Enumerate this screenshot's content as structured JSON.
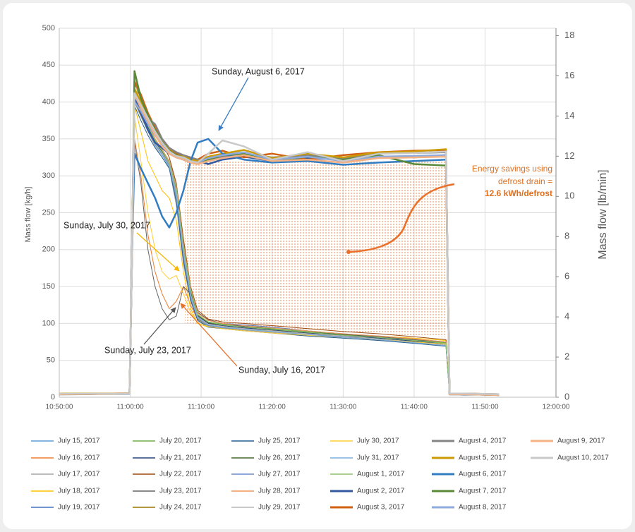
{
  "chart_data": {
    "type": "line",
    "y_label": "Mass flow [kg/h]",
    "y2_label": "Mass flow [lb/min]",
    "annotations": [
      "Sunday, August 6, 2017",
      "Sunday, July 30, 2017",
      "Sunday, July 23, 2017",
      "Sunday, July 16, 2017",
      "Energy savings using",
      "defrost drain =",
      "12.6 kWh/defrost"
    ],
    "xlim": [
      650,
      720
    ],
    "xticks": [
      {
        "value": 650,
        "label": "10:50:00"
      },
      {
        "value": 660,
        "label": "11:00:00"
      },
      {
        "value": 670,
        "label": "11:10:00"
      },
      {
        "value": 680,
        "label": "11:20:00"
      },
      {
        "value": 690,
        "label": "11:30:00"
      },
      {
        "value": 700,
        "label": "11:40:00"
      },
      {
        "value": 710,
        "label": "11:50:00"
      },
      {
        "value": 720,
        "label": "12:00:00"
      }
    ],
    "ylim": [
      0,
      500
    ],
    "yticks": [
      0,
      50,
      100,
      150,
      200,
      250,
      300,
      350,
      400,
      450,
      500
    ],
    "y2lim": [
      0,
      18.37
    ],
    "y2ticks": [
      0,
      2,
      4,
      6,
      8,
      10,
      12,
      14,
      16,
      18
    ],
    "grid": true,
    "x": [
      650,
      659.9,
      660.2,
      660.6,
      661.5,
      662.5,
      663.5,
      664.5,
      665.5,
      666.5,
      667.5,
      668.5,
      669.5,
      671,
      673,
      676,
      680,
      685,
      690,
      695,
      700,
      704.5,
      705,
      707,
      712
    ],
    "series": [
      {
        "name": "July 15, 2017",
        "color": "#5b9bd5",
        "width": 1,
        "values": [
          4,
          5,
          180,
          405,
          385,
          362,
          342,
          328,
          312,
          270,
          190,
          135,
          108,
          98,
          95,
          93,
          90,
          86,
          83,
          80,
          76,
          72,
          4,
          4,
          3
        ]
      },
      {
        "name": "July 16, 2017",
        "color": "#ed7d31",
        "width": 1,
        "values": [
          5,
          6,
          200,
          350,
          300,
          220,
          170,
          140,
          120,
          130,
          150,
          125,
          105,
          100,
          97,
          94,
          91,
          87,
          84,
          81,
          78,
          74,
          5,
          4,
          4
        ]
      },
      {
        "name": "July 17, 2017",
        "color": "#a5a5a5",
        "width": 1,
        "values": [
          3,
          4,
          150,
          400,
          380,
          360,
          340,
          325,
          310,
          260,
          180,
          130,
          105,
          96,
          94,
          91,
          88,
          84,
          80,
          77,
          74,
          70,
          3,
          3,
          3
        ]
      },
      {
        "name": "July 18, 2017",
        "color": "#ffc000",
        "width": 1,
        "values": [
          6,
          6,
          190,
          395,
          360,
          320,
          300,
          280,
          270,
          240,
          170,
          120,
          100,
          95,
          93,
          92,
          90,
          87,
          85,
          83,
          80,
          77,
          5,
          5,
          4
        ]
      },
      {
        "name": "July 19, 2017",
        "color": "#4472c4",
        "width": 1,
        "values": [
          4,
          5,
          160,
          415,
          395,
          370,
          350,
          335,
          320,
          290,
          210,
          150,
          115,
          104,
          100,
          98,
          95,
          90,
          86,
          83,
          79,
          75,
          4,
          4,
          3
        ]
      },
      {
        "name": "July 20, 2017",
        "color": "#70ad47",
        "width": 1,
        "values": [
          5,
          5,
          170,
          440,
          400,
          370,
          350,
          335,
          318,
          285,
          205,
          145,
          112,
          102,
          99,
          96,
          93,
          89,
          85,
          82,
          78,
          74,
          5,
          4,
          4
        ]
      },
      {
        "name": "July 21, 2017",
        "color": "#264478",
        "width": 1,
        "values": [
          4,
          4,
          165,
          408,
          388,
          366,
          346,
          332,
          316,
          282,
          200,
          142,
          110,
          100,
          97,
          94,
          91,
          87,
          84,
          80,
          76,
          72,
          4,
          4,
          3
        ]
      },
      {
        "name": "July 22, 2017",
        "color": "#9e480e",
        "width": 1,
        "values": [
          5,
          6,
          175,
          425,
          405,
          385,
          365,
          345,
          325,
          290,
          215,
          150,
          118,
          106,
          102,
          100,
          97,
          93,
          89,
          86,
          82,
          78,
          5,
          5,
          4
        ]
      },
      {
        "name": "July 23, 2017",
        "color": "#636363",
        "width": 1,
        "values": [
          5,
          5,
          190,
          345,
          290,
          200,
          150,
          120,
          105,
          110,
          150,
          140,
          115,
          105,
          100,
          96,
          92,
          88,
          85,
          82,
          78,
          75,
          5,
          4,
          4
        ]
      },
      {
        "name": "July 24, 2017",
        "color": "#997300",
        "width": 1,
        "values": [
          4,
          5,
          170,
          400,
          382,
          362,
          344,
          330,
          315,
          275,
          195,
          138,
          106,
          97,
          95,
          92,
          89,
          85,
          82,
          79,
          75,
          71,
          4,
          4,
          3
        ]
      },
      {
        "name": "July 25, 2017",
        "color": "#255e91",
        "width": 1,
        "values": [
          4,
          4,
          160,
          395,
          375,
          355,
          338,
          325,
          310,
          265,
          185,
          132,
          104,
          95,
          93,
          90,
          87,
          83,
          80,
          77,
          73,
          69,
          4,
          3,
          3
        ]
      },
      {
        "name": "July 26, 2017",
        "color": "#43682b",
        "width": 1,
        "values": [
          5,
          5,
          168,
          410,
          390,
          368,
          348,
          333,
          318,
          283,
          203,
          144,
          111,
          101,
          98,
          95,
          92,
          88,
          85,
          81,
          77,
          73,
          5,
          4,
          4
        ]
      },
      {
        "name": "July 27, 2017",
        "color": "#698ed0",
        "width": 1,
        "values": [
          4,
          4,
          162,
          402,
          383,
          363,
          343,
          329,
          314,
          272,
          192,
          136,
          107,
          97,
          94,
          92,
          89,
          85,
          82,
          78,
          74,
          70,
          4,
          4,
          3
        ]
      },
      {
        "name": "July 28, 2017",
        "color": "#f1975a",
        "width": 1,
        "values": [
          5,
          6,
          172,
          412,
          392,
          370,
          350,
          336,
          320,
          287,
          208,
          148,
          114,
          104,
          100,
          97,
          94,
          90,
          86,
          83,
          79,
          75,
          5,
          5,
          4
        ]
      },
      {
        "name": "July 29, 2017",
        "color": "#b7b7b7",
        "width": 1,
        "values": [
          4,
          5,
          166,
          406,
          386,
          364,
          345,
          331,
          316,
          279,
          198,
          140,
          109,
          99,
          96,
          93,
          90,
          86,
          83,
          79,
          75,
          71,
          4,
          4,
          3
        ]
      },
      {
        "name": "July 30, 2017",
        "color": "#ffcd33",
        "width": 1,
        "values": [
          5,
          5,
          185,
          380,
          320,
          250,
          200,
          170,
          160,
          165,
          140,
          115,
          100,
          96,
          93,
          90,
          87,
          84,
          81,
          78,
          75,
          72,
          5,
          4,
          4
        ]
      },
      {
        "name": "July 31, 2017",
        "color": "#7cafdd",
        "width": 1,
        "values": [
          4,
          4,
          164,
          404,
          384,
          362,
          343,
          329,
          313,
          274,
          194,
          137,
          107,
          98,
          95,
          92,
          89,
          85,
          81,
          78,
          74,
          70,
          4,
          4,
          3
        ]
      },
      {
        "name": "August 1, 2017",
        "color": "#8cc168",
        "width": 1,
        "values": [
          5,
          5,
          170,
          430,
          395,
          368,
          348,
          334,
          318,
          284,
          204,
          146,
          112,
          102,
          98,
          95,
          92,
          88,
          84,
          81,
          77,
          73,
          5,
          4,
          4
        ]
      },
      {
        "name": "August 2, 2017",
        "color": "#335aa1",
        "width": 2.5,
        "values": [
          4,
          5,
          160,
          405,
          385,
          362,
          345,
          338,
          330,
          325,
          322,
          318,
          320,
          316,
          322,
          326,
          320,
          324,
          322,
          326,
          325,
          328,
          4,
          4,
          3
        ]
      },
      {
        "name": "August 3, 2017",
        "color": "#d26012",
        "width": 2.5,
        "values": [
          5,
          5,
          170,
          428,
          410,
          385,
          365,
          348,
          336,
          330,
          326,
          324,
          322,
          330,
          334,
          325,
          330,
          322,
          328,
          332,
          334,
          335,
          5,
          5,
          4
        ]
      },
      {
        "name": "August 4, 2017",
        "color": "#848484",
        "width": 2.5,
        "values": [
          4,
          5,
          165,
          415,
          395,
          378,
          370,
          350,
          338,
          332,
          328,
          325,
          322,
          320,
          326,
          330,
          325,
          328,
          324,
          330,
          331,
          332,
          4,
          4,
          3
        ]
      },
      {
        "name": "August 5, 2017",
        "color": "#cc9a00",
        "width": 2.5,
        "values": [
          5,
          5,
          168,
          418,
          400,
          380,
          362,
          346,
          335,
          328,
          326,
          322,
          320,
          326,
          330,
          335,
          324,
          330,
          325,
          332,
          333,
          336,
          5,
          5,
          4
        ]
      },
      {
        "name": "August 6, 2017",
        "color": "#327dc2",
        "width": 2.5,
        "values": [
          5,
          5,
          170,
          330,
          310,
          290,
          270,
          245,
          230,
          250,
          280,
          320,
          345,
          350,
          330,
          322,
          318,
          320,
          315,
          318,
          320,
          322,
          5,
          4,
          4
        ]
      },
      {
        "name": "August 7, 2017",
        "color": "#5a8a39",
        "width": 2.5,
        "values": [
          4,
          5,
          162,
          442,
          405,
          382,
          362,
          346,
          334,
          328,
          325,
          320,
          318,
          322,
          328,
          330,
          320,
          326,
          322,
          328,
          316,
          314,
          4,
          4,
          3
        ]
      },
      {
        "name": "August 8, 2017",
        "color": "#8faadc",
        "width": 2.5,
        "values": [
          5,
          5,
          166,
          400,
          388,
          370,
          355,
          342,
          332,
          326,
          322,
          320,
          318,
          324,
          328,
          332,
          322,
          326,
          320,
          326,
          327,
          328,
          5,
          5,
          4
        ]
      },
      {
        "name": "August 9, 2017",
        "color": "#f4b183",
        "width": 2.5,
        "values": [
          4,
          5,
          164,
          410,
          392,
          374,
          356,
          340,
          330,
          325,
          322,
          318,
          316,
          320,
          324,
          328,
          320,
          322,
          318,
          324,
          325,
          326,
          4,
          4,
          3
        ]
      },
      {
        "name": "August 10, 2017",
        "color": "#c9c9c9",
        "width": 2.5,
        "values": [
          5,
          5,
          168,
          412,
          396,
          378,
          360,
          345,
          333,
          327,
          325,
          320,
          318,
          330,
          348,
          340,
          322,
          332,
          320,
          330,
          331,
          333,
          5,
          5,
          4
        ]
      }
    ]
  }
}
